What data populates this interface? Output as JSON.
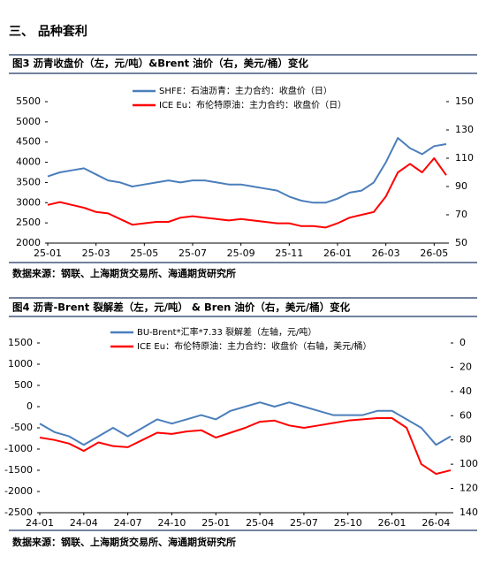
{
  "header": {
    "title": "三、 品种套利"
  },
  "chart_data": [
    {
      "type": "line",
      "title": "图3 沥青收盘价（左，元/吨）&Brent 油价（右，美元/桶）变化",
      "source": "数据来源：钢联、上海期货交易所、海通期货研究所",
      "categories": [
        "25-01",
        null,
        null,
        null,
        "25-03",
        null,
        null,
        null,
        "25-05",
        null,
        null,
        null,
        "25-07",
        null,
        null,
        null,
        "25-09",
        null,
        null,
        null,
        "25-11",
        null,
        null,
        null,
        "26-01",
        null,
        null,
        null,
        "26-03",
        null,
        null,
        null,
        "26-05",
        null
      ],
      "ylim": [
        2000,
        5500
      ],
      "yticks": [
        2000,
        2500,
        3000,
        3500,
        4000,
        4500,
        5000,
        5500
      ],
      "y2lim": [
        50,
        150
      ],
      "y2ticks": [
        50,
        70,
        90,
        110,
        130,
        150
      ],
      "y2_reversed": false,
      "series": [
        {
          "name": "SHFE：石油沥青：主力合约：收盘价（日）",
          "color": "#4a7ebb",
          "values": [
            3650,
            3750,
            3800,
            3850,
            3700,
            3550,
            3500,
            3400,
            3450,
            3500,
            3550,
            3500,
            3550,
            3550,
            3500,
            3450,
            3450,
            3400,
            3350,
            3300,
            3150,
            3050,
            3000,
            3000,
            3100,
            3250,
            3300,
            3500,
            4000,
            4600,
            4350,
            4200,
            4400,
            4450
          ]
        },
        {
          "name": "ICE Eu：布伦特原油：主力合约：收盘价（日）",
          "color": "#ff0000",
          "axis": "y2",
          "values": [
            77,
            79,
            77,
            75,
            72,
            71,
            67,
            63,
            64,
            65,
            65,
            68,
            69,
            68,
            67,
            66,
            67,
            66,
            65,
            64,
            64,
            62,
            62,
            61,
            64,
            68,
            70,
            72,
            83,
            100,
            106,
            100,
            110,
            98
          ]
        }
      ]
    },
    {
      "type": "line",
      "title": "图4 沥青-Brent 裂解差（左，元/吨） & Bren 油价（右，美元/桶）变化",
      "source": "数据来源：钢联、上海期货交易所、海通期货研究所",
      "categories": [
        "24-01",
        null,
        null,
        "24-04",
        null,
        null,
        "24-07",
        null,
        null,
        "24-10",
        null,
        null,
        "25-01",
        null,
        null,
        "25-04",
        null,
        null,
        "25-07",
        null,
        null,
        "25-10",
        null,
        null,
        "26-01",
        null,
        null,
        "26-04",
        null
      ],
      "ylim": [
        -2500,
        1500
      ],
      "yticks": [
        -2500,
        -2000,
        -1500,
        -1000,
        -500,
        0,
        500,
        1000,
        1500
      ],
      "y2lim": [
        0,
        140
      ],
      "y2ticks": [
        0,
        20,
        40,
        60,
        80,
        100,
        120,
        140
      ],
      "y2_reversed": true,
      "series": [
        {
          "name": "BU-Brent*汇率*7.33 裂解差（左轴，元/吨）",
          "color": "#4a7ebb",
          "values": [
            -400,
            -600,
            -700,
            -900,
            -700,
            -500,
            -700,
            -500,
            -300,
            -400,
            -300,
            -200,
            -300,
            -100,
            0,
            100,
            0,
            100,
            0,
            -100,
            -200,
            -200,
            -200,
            -100,
            -100,
            -300,
            -500,
            -900,
            -700
          ]
        },
        {
          "name": "ICE Eu：布伦特原油：主力合约：收盘价（右轴，美元/桶）",
          "color": "#ff0000",
          "axis": "y2",
          "values": [
            78,
            80,
            83,
            89,
            82,
            85,
            86,
            80,
            74,
            75,
            73,
            72,
            78,
            74,
            70,
            65,
            64,
            68,
            70,
            68,
            66,
            64,
            63,
            62,
            62,
            70,
            100,
            108,
            105
          ]
        }
      ]
    }
  ]
}
